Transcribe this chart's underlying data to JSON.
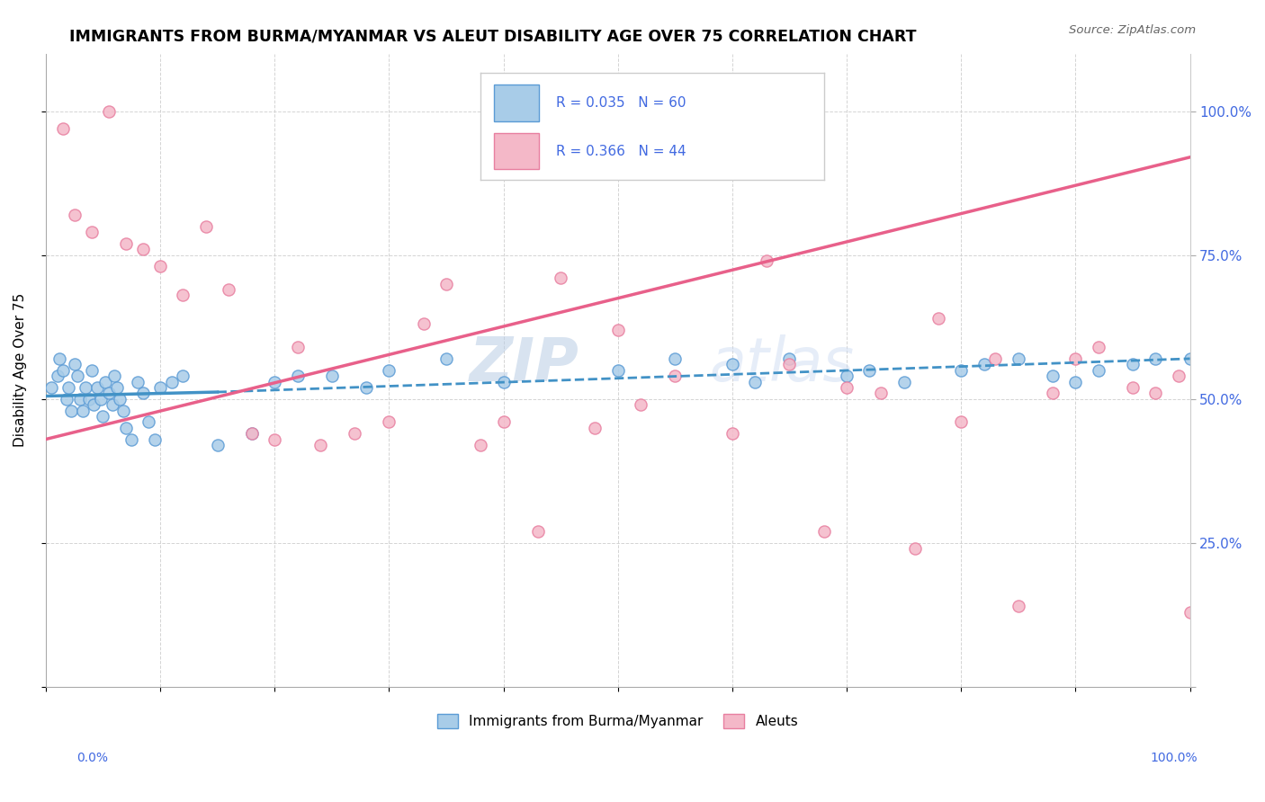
{
  "title": "IMMIGRANTS FROM BURMA/MYANMAR VS ALEUT DISABILITY AGE OVER 75 CORRELATION CHART",
  "source": "Source: ZipAtlas.com",
  "ylabel": "Disability Age Over 75",
  "legend_label1": "Immigrants from Burma/Myanmar",
  "legend_label2": "Aleuts",
  "r1": "0.035",
  "n1": "60",
  "r2": "0.366",
  "n2": "44",
  "color_blue": "#a8cce8",
  "color_blue_edge": "#5b9bd5",
  "color_blue_line": "#4292c6",
  "color_pink": "#f4b8c8",
  "color_pink_edge": "#e87fa0",
  "color_pink_line": "#e8608a",
  "color_text_blue": "#4169e1",
  "watermark_color": "#c8d8f0",
  "blue_x": [
    0.5,
    1.0,
    1.2,
    1.5,
    1.8,
    2.0,
    2.2,
    2.5,
    2.8,
    3.0,
    3.2,
    3.5,
    3.8,
    4.0,
    4.2,
    4.5,
    4.8,
    5.0,
    5.2,
    5.5,
    5.8,
    6.0,
    6.2,
    6.5,
    6.8,
    7.0,
    7.5,
    8.0,
    8.5,
    9.0,
    9.5,
    10.0,
    11.0,
    12.0,
    15.0,
    18.0,
    20.0,
    22.0,
    25.0,
    28.0,
    30.0,
    35.0,
    40.0,
    50.0,
    55.0,
    60.0,
    62.0,
    65.0,
    70.0,
    72.0,
    75.0,
    80.0,
    82.0,
    85.0,
    88.0,
    90.0,
    92.0,
    95.0,
    97.0,
    100.0
  ],
  "blue_y": [
    52.0,
    54.0,
    57.0,
    55.0,
    50.0,
    52.0,
    48.0,
    56.0,
    54.0,
    50.0,
    48.0,
    52.0,
    50.0,
    55.0,
    49.0,
    52.0,
    50.0,
    47.0,
    53.0,
    51.0,
    49.0,
    54.0,
    52.0,
    50.0,
    48.0,
    45.0,
    43.0,
    53.0,
    51.0,
    46.0,
    43.0,
    52.0,
    53.0,
    54.0,
    42.0,
    44.0,
    53.0,
    54.0,
    54.0,
    52.0,
    55.0,
    57.0,
    53.0,
    55.0,
    57.0,
    56.0,
    53.0,
    57.0,
    54.0,
    55.0,
    53.0,
    55.0,
    56.0,
    57.0,
    54.0,
    53.0,
    55.0,
    56.0,
    57.0,
    57.0
  ],
  "pink_x": [
    1.5,
    2.5,
    4.0,
    5.5,
    7.0,
    8.5,
    10.0,
    12.0,
    14.0,
    16.0,
    18.0,
    20.0,
    22.0,
    24.0,
    27.0,
    30.0,
    33.0,
    35.0,
    38.0,
    40.0,
    43.0,
    45.0,
    48.0,
    50.0,
    52.0,
    55.0,
    60.0,
    63.0,
    65.0,
    68.0,
    70.0,
    73.0,
    76.0,
    78.0,
    80.0,
    83.0,
    85.0,
    88.0,
    90.0,
    92.0,
    95.0,
    97.0,
    99.0,
    100.0
  ],
  "pink_y": [
    97.0,
    82.0,
    79.0,
    100.0,
    77.0,
    76.0,
    73.0,
    68.0,
    80.0,
    69.0,
    44.0,
    43.0,
    59.0,
    42.0,
    44.0,
    46.0,
    63.0,
    70.0,
    42.0,
    46.0,
    27.0,
    71.0,
    45.0,
    62.0,
    49.0,
    54.0,
    44.0,
    74.0,
    56.0,
    27.0,
    52.0,
    51.0,
    24.0,
    64.0,
    46.0,
    57.0,
    14.0,
    51.0,
    57.0,
    59.0,
    52.0,
    51.0,
    54.0,
    13.0
  ],
  "xlim": [
    0,
    100
  ],
  "ylim": [
    0,
    110
  ],
  "background_color": "#ffffff",
  "grid_color": "#d0d0d0"
}
